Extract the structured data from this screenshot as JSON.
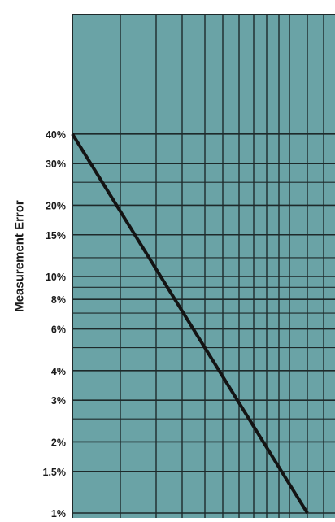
{
  "chart_data": {
    "type": "line",
    "title": "",
    "xlabel": "",
    "ylabel": "Measurement Error",
    "y_scale": "log",
    "ylim": [
      1,
      50
    ],
    "y_ticks": [
      {
        "value": 40,
        "label": "40%"
      },
      {
        "value": 30,
        "label": "30%"
      },
      {
        "value": 20,
        "label": "20%"
      },
      {
        "value": 15,
        "label": "15%"
      },
      {
        "value": 10,
        "label": "10%"
      },
      {
        "value": 8,
        "label": "8%"
      },
      {
        "value": 6,
        "label": "6%"
      },
      {
        "value": 4,
        "label": "4%"
      },
      {
        "value": 3,
        "label": "3%"
      },
      {
        "value": 2,
        "label": "2%"
      },
      {
        "value": 1.5,
        "label": "1.5%"
      },
      {
        "value": 1,
        "label": "1%"
      }
    ],
    "grid": true,
    "colors": {
      "background": "#6aa3a6",
      "grid": "#1e2a2b",
      "line": "#141414"
    }
  }
}
